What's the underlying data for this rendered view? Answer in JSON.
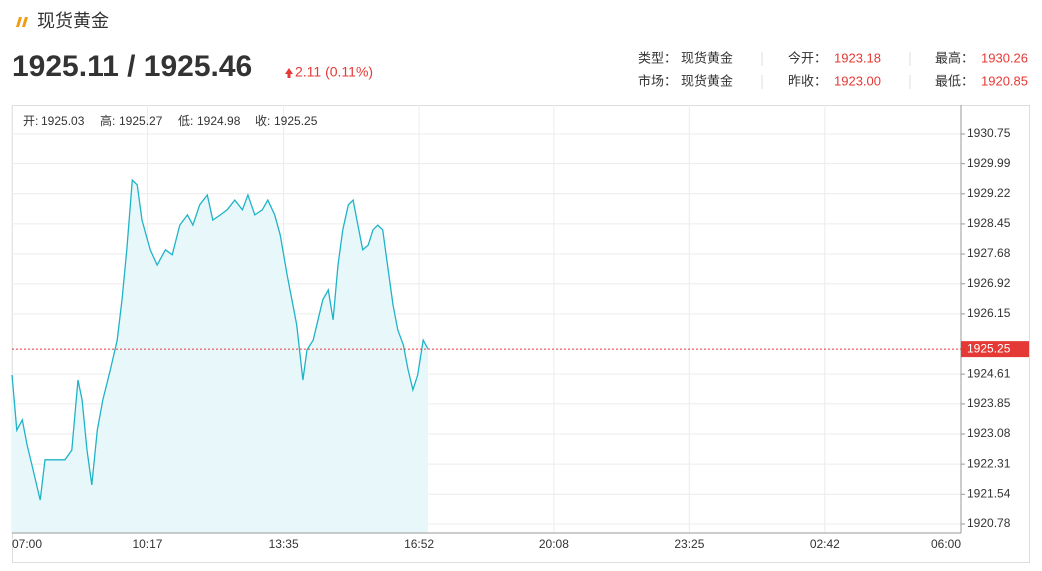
{
  "header": {
    "title": "现货黄金",
    "quote": "1925.11 / 1925.46",
    "change": "2.11 (0.11%)",
    "info": [
      [
        {
          "label": "类型：",
          "value": "现货黄金"
        },
        {
          "label": "今开：",
          "value": "1923.18"
        },
        {
          "label": "最高：",
          "value": "1930.26"
        }
      ],
      [
        {
          "label": "市场：",
          "value": "现货黄金"
        },
        {
          "label": "昨收：",
          "value": "1923.00"
        },
        {
          "label": "最低：",
          "value": "1920.85"
        }
      ]
    ]
  },
  "chart_data": {
    "type": "line",
    "ohlc": [
      {
        "label": "开:",
        "value": "1925.03"
      },
      {
        "label": "高:",
        "value": "1925.27"
      },
      {
        "label": "低:",
        "value": "1924.98"
      },
      {
        "label": "收:",
        "value": "1925.25"
      }
    ],
    "x": [
      "07:00",
      "07:07",
      "07:15",
      "07:22",
      "07:29",
      "07:41",
      "07:48",
      "08:03",
      "08:17",
      "08:27",
      "08:36",
      "08:42",
      "08:49",
      "08:56",
      "09:04",
      "09:12",
      "09:23",
      "09:33",
      "09:40",
      "09:47",
      "09:55",
      "10:02",
      "10:09",
      "10:21",
      "10:31",
      "10:43",
      "10:53",
      "11:04",
      "11:15",
      "11:23",
      "11:33",
      "11:44",
      "11:52",
      "12:03",
      "12:13",
      "12:24",
      "12:35",
      "12:43",
      "12:53",
      "13:04",
      "13:12",
      "13:22",
      "13:30",
      "13:40",
      "13:47",
      "13:54",
      "14:03",
      "14:09",
      "14:18",
      "14:25",
      "14:32",
      "14:40",
      "14:47",
      "14:54",
      "15:01",
      "15:09",
      "15:16",
      "15:23",
      "15:30",
      "15:38",
      "15:45",
      "15:52",
      "15:59",
      "16:07",
      "16:14",
      "16:21",
      "16:29",
      "16:36",
      "16:43",
      "16:50",
      "16:58",
      "17:05"
    ],
    "values": [
      1924.59,
      1923.18,
      1923.44,
      1922.8,
      1922.29,
      1921.39,
      1922.42,
      1922.42,
      1922.42,
      1922.67,
      1924.46,
      1923.95,
      1922.67,
      1921.78,
      1923.18,
      1923.95,
      1924.72,
      1925.48,
      1926.51,
      1927.79,
      1929.57,
      1929.45,
      1928.55,
      1927.79,
      1927.4,
      1927.79,
      1927.66,
      1928.42,
      1928.68,
      1928.42,
      1928.94,
      1929.19,
      1928.55,
      1928.68,
      1928.81,
      1929.06,
      1928.81,
      1929.19,
      1928.68,
      1928.81,
      1929.06,
      1928.68,
      1928.17,
      1927.15,
      1926.51,
      1925.87,
      1924.46,
      1925.23,
      1925.48,
      1926.0,
      1926.51,
      1926.76,
      1926.0,
      1927.4,
      1928.3,
      1928.94,
      1929.06,
      1928.42,
      1927.79,
      1927.91,
      1928.3,
      1928.42,
      1928.3,
      1927.27,
      1926.38,
      1925.74,
      1925.36,
      1924.72,
      1924.21,
      1924.59,
      1925.48,
      1925.25
    ],
    "color": "#1fb3c8",
    "fill_color": "#e8f8fa",
    "last_price": 1925.25,
    "last_price_color": "#e53935",
    "xlim": [
      "07:00",
      "06:00"
    ],
    "xticks": [
      "07:00",
      "10:17",
      "13:35",
      "16:52",
      "20:08",
      "23:25",
      "02:42",
      "06:00"
    ],
    "ylim": [
      1920.55,
      1931.49
    ],
    "yticks": [
      1930.75,
      1929.99,
      1929.22,
      1928.45,
      1927.68,
      1926.92,
      1926.15,
      1924.61,
      1923.85,
      1923.08,
      1922.31,
      1921.54,
      1920.78
    ],
    "grid": true
  }
}
